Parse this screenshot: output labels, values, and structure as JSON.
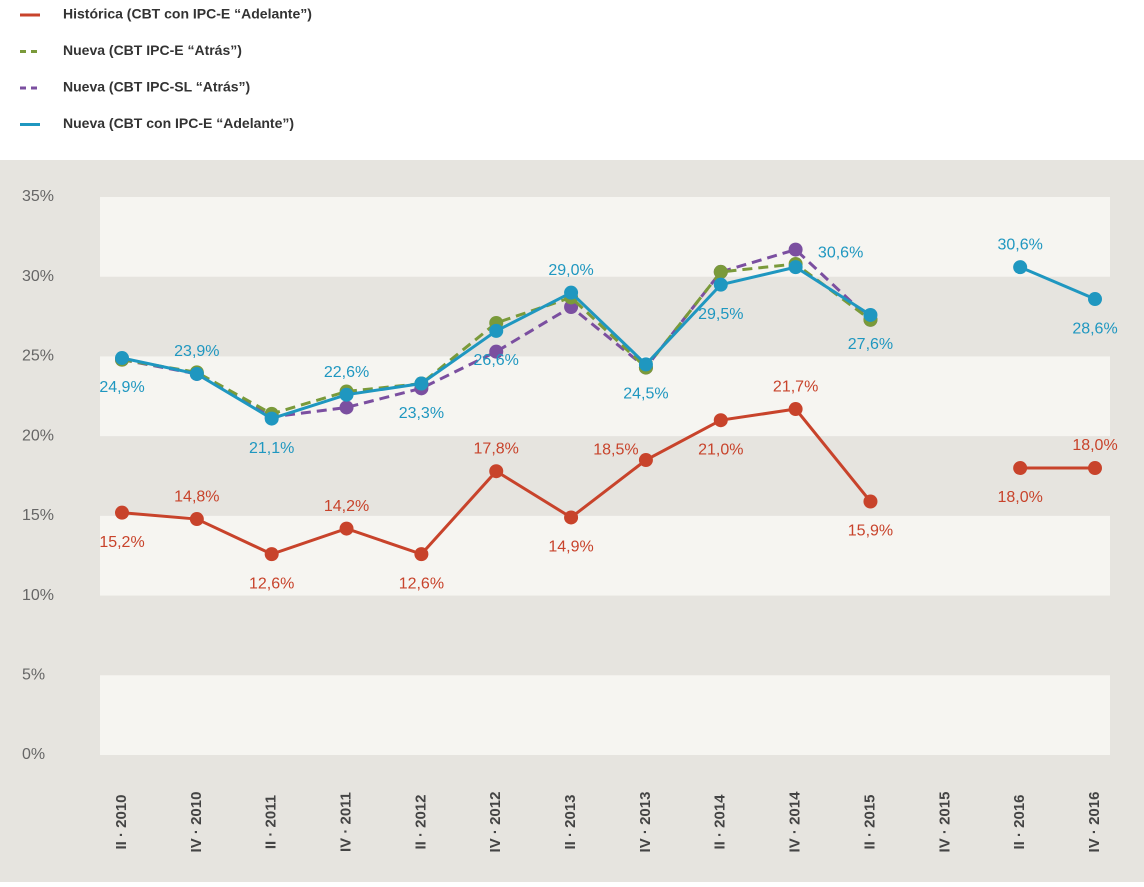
{
  "chart_data": {
    "type": "line",
    "categories": [
      "II · 2010",
      "IV · 2010",
      "II · 2011",
      "IV · 2011",
      "II · 2012",
      "IV · 2012",
      "II · 2013",
      "IV · 2013",
      "II · 2014",
      "IV · 2014",
      "II · 2015",
      "IV · 2015",
      "II · 2016",
      "IV · 2016"
    ],
    "ylim": [
      0,
      35
    ],
    "yticks": [
      {
        "value": 0,
        "label": "0%"
      },
      {
        "value": 5,
        "label": "5%"
      },
      {
        "value": 10,
        "label": "10%"
      },
      {
        "value": 15,
        "label": "15%"
      },
      {
        "value": 20,
        "label": "20%"
      },
      {
        "value": 25,
        "label": "25%"
      },
      {
        "value": 30,
        "label": "30%"
      },
      {
        "value": 35,
        "label": "35%"
      }
    ],
    "grid": true,
    "series": [
      {
        "name": "Histórica (CBT con IPC-E “Adelante”)",
        "color": "#c8432b",
        "dash": false,
        "values": [
          15.2,
          14.8,
          12.6,
          14.2,
          12.6,
          17.8,
          14.9,
          18.5,
          21.0,
          21.7,
          15.9,
          null,
          18.0,
          18.0
        ],
        "value_labels": [
          "15,2%",
          "14,8%",
          "12,6%",
          "14,2%",
          "12,6%",
          "17,8%",
          "14,9%",
          "18,5%",
          "21,0%",
          "21,7%",
          "15,9%",
          null,
          "18,0%",
          "18,0%"
        ]
      },
      {
        "name": "Nueva (CBT IPC-E “Atrás”)",
        "color": "#7a9a3a",
        "dash": true,
        "values": [
          24.8,
          24.0,
          21.4,
          22.8,
          23.3,
          27.1,
          28.7,
          24.3,
          30.3,
          30.8,
          27.3,
          null,
          null,
          null
        ]
      },
      {
        "name": "Nueva (CBT IPC-SL “Atrás”)",
        "color": "#7b4fa0",
        "dash": true,
        "values": [
          24.8,
          23.9,
          21.2,
          21.8,
          23.0,
          25.3,
          28.1,
          24.3,
          30.3,
          31.7,
          27.3,
          null,
          null,
          null
        ]
      },
      {
        "name": "Nueva (CBT con IPC-E “Adelante”)",
        "color": "#1f97c0",
        "dash": false,
        "values": [
          24.9,
          23.9,
          21.1,
          22.6,
          23.3,
          26.6,
          29.0,
          24.5,
          29.5,
          30.6,
          27.6,
          null,
          30.6,
          28.6
        ],
        "value_labels": [
          "24,9%",
          "23,9%",
          "21,1%",
          "22,6%",
          "23,3%",
          "26,6%",
          "29,0%",
          "24,5%",
          "29,5%",
          "30,6%",
          "27,6%",
          null,
          "30,6%",
          "28,6%"
        ]
      }
    ]
  }
}
